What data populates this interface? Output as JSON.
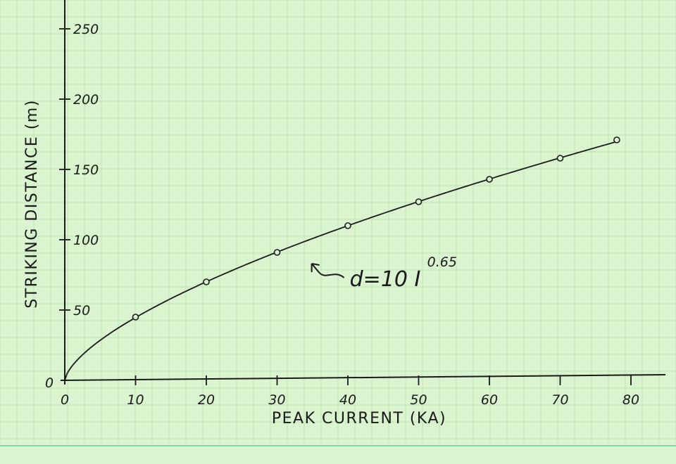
{
  "chart_data": {
    "type": "scatter",
    "xlabel": "PEAK CURRENT (KA)",
    "ylabel": "STRIKING DISTANCE (m)",
    "x_ticks": [
      "0",
      "10",
      "20",
      "30",
      "40",
      "50",
      "60",
      "70",
      "80"
    ],
    "y_ticks": [
      "0",
      "50",
      "100",
      "150",
      "200",
      "250"
    ],
    "xlim": [
      0,
      85
    ],
    "ylim": [
      0,
      270
    ],
    "grid": true,
    "points": {
      "x": [
        10,
        20,
        30,
        40,
        50,
        60,
        70,
        78
      ],
      "y": [
        45,
        70,
        91,
        110,
        127,
        143,
        158,
        171
      ]
    },
    "curve": {
      "formula": "d = 10 I^0.65",
      "coefficient": 10,
      "exponent": 0.65
    },
    "annotation": {
      "text": "d=10 I",
      "exponent_text": "0.65",
      "x": 33,
      "y": 85
    },
    "colors": {
      "background": "#d9f4cf",
      "grid": "#bfe5b3",
      "ink": "#1a1a1a",
      "footer_line": "#7fd6a8"
    }
  }
}
